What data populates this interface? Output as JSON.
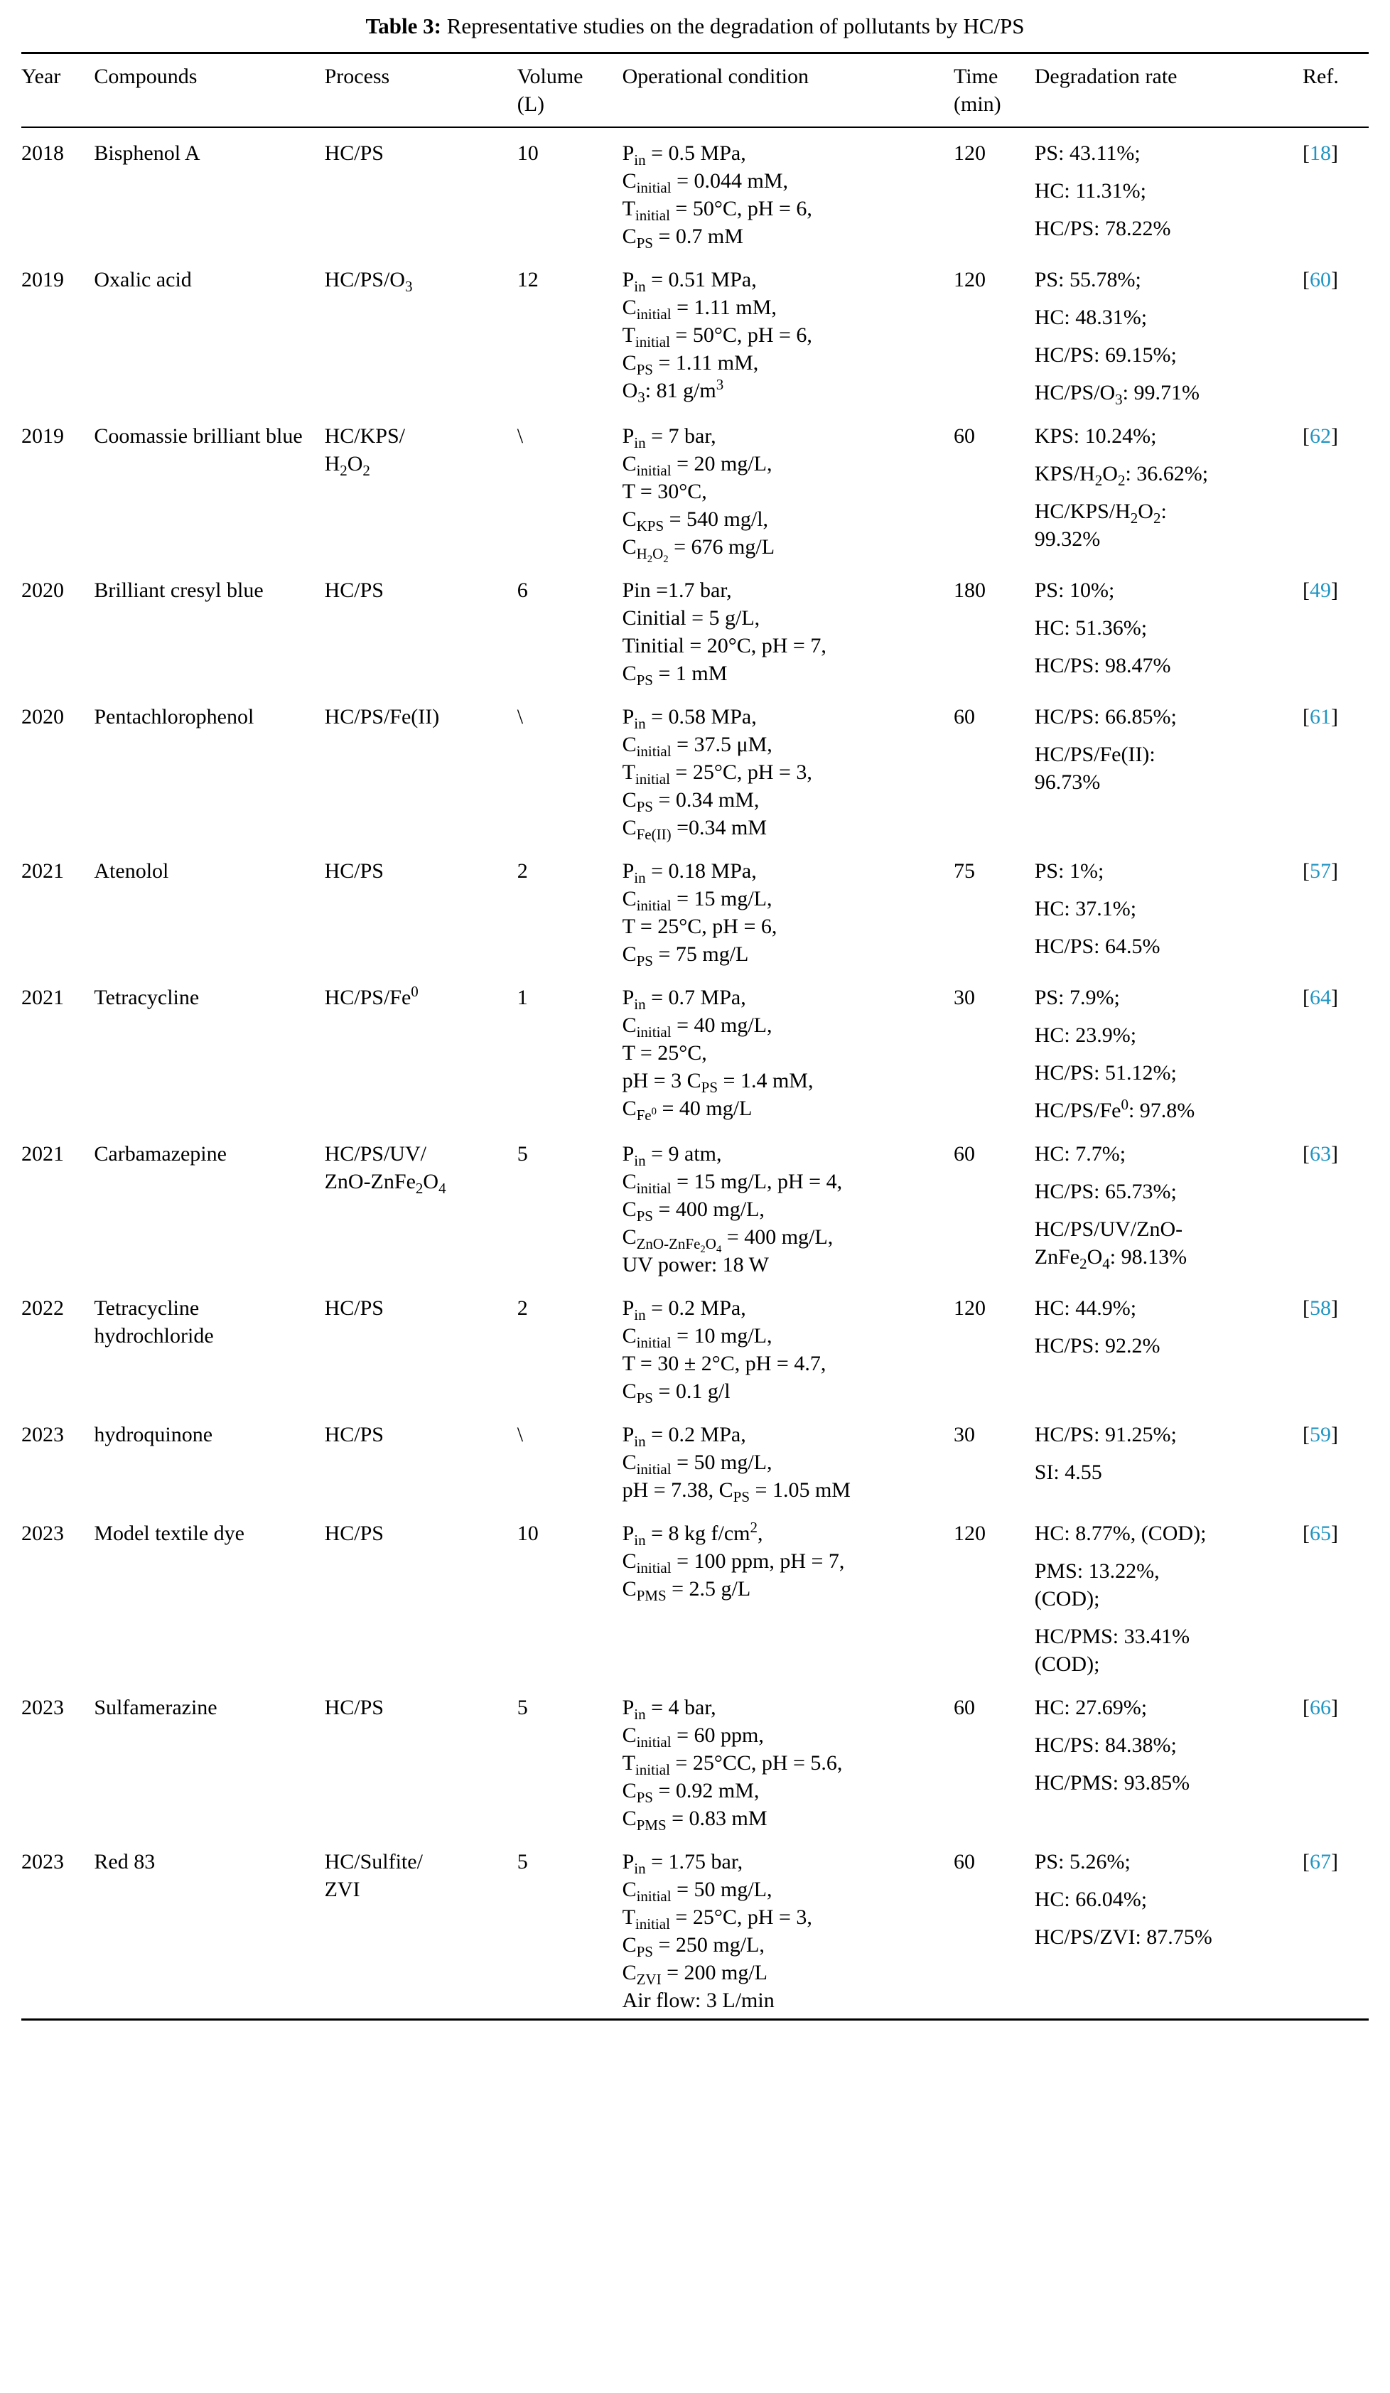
{
  "caption": {
    "label": "Table 3:",
    "text": "Representative studies on the degradation of pollutants by HC/PS"
  },
  "citation": {
    "open": "[",
    "close": "]"
  },
  "colors": {
    "text": "#000000",
    "rule": "#000000",
    "ref_link": "#2095c3"
  },
  "table": {
    "columns": [
      {
        "key": "year",
        "label": "Year"
      },
      {
        "key": "compounds",
        "label": "Compounds"
      },
      {
        "key": "process",
        "label": "Process"
      },
      {
        "key": "volume",
        "label": "Volume (L)"
      },
      {
        "key": "condition",
        "label": "Operational condition"
      },
      {
        "key": "time",
        "label": "Time (min)"
      },
      {
        "key": "rate",
        "label": "Degradation rate"
      },
      {
        "key": "ref",
        "label": "Ref."
      }
    ],
    "rows": [
      {
        "year": "2018",
        "compounds": "Bisphenol A",
        "process": "HC/PS",
        "volume": "10",
        "condition_lines": [
          "P<sub>in</sub> = 0.5 MPa,",
          "C<sub>initial</sub> = 0.044 mM,",
          "T<sub>initial</sub> = 50°C, pH = 6,",
          "C<sub>PS</sub> = 0.7 mM"
        ],
        "time": "120",
        "rate_items": [
          "PS: 43.11%;",
          "HC: 11.31%;",
          "HC/PS: 78.22%"
        ],
        "ref": "18"
      },
      {
        "year": "2019",
        "compounds": "Oxalic acid",
        "process": "HC/PS/O<sub>3</sub>",
        "volume": "12",
        "condition_lines": [
          "P<sub>in</sub> = 0.51 MPa,",
          "C<sub>initial</sub> = 1.11 mM,",
          "T<sub>initial</sub> = 50°C, pH = 6,",
          "C<sub>PS</sub> = 1.11 mM,",
          "O<sub>3</sub>: 81 g/m<sup>3</sup>"
        ],
        "time": "120",
        "rate_items": [
          "PS: 55.78%;",
          "HC: 48.31%;",
          "HC/PS: 69.15%;",
          "HC/PS/O<sub>3</sub>: 99.71%"
        ],
        "ref": "60"
      },
      {
        "year": "2019",
        "compounds": "Coomassie brilliant blue",
        "process": "HC/KPS/<br>H<sub>2</sub>O<sub>2</sub>",
        "volume": "\\",
        "condition_lines": [
          "P<sub>in</sub> = 7 bar,",
          "C<sub>initial</sub> = 20 mg/L,",
          "T = 30°C,",
          "C<sub>KPS</sub> = 540 mg/l,",
          "C<sub>H<sub>2</sub>O<sub>2</sub></sub> = 676 mg/L"
        ],
        "time": "60",
        "rate_items": [
          "KPS: 10.24%;",
          "KPS/H<sub>2</sub>O<sub>2</sub>: 36.62%;",
          "HC/KPS/H<sub>2</sub>O<sub>2</sub>:<br>99.32%"
        ],
        "ref": "62"
      },
      {
        "year": "2020",
        "compounds": "Brilliant cresyl blue",
        "process": "HC/PS",
        "volume": "6",
        "condition_lines": [
          "Pin =1.7 bar,",
          "Cinitial = 5 g/L,",
          "Tinitial = 20°C, pH = 7,",
          "C<sub>PS</sub> = 1 mM"
        ],
        "time": "180",
        "rate_items": [
          "PS: 10%;",
          "HC: 51.36%;",
          "HC/PS: 98.47%"
        ],
        "ref": "49"
      },
      {
        "year": "2020",
        "compounds": "Pentachlorophenol",
        "process": "HC/PS/Fe(II)",
        "volume": "\\",
        "condition_lines": [
          "P<sub>in</sub> = 0.58 MPa,",
          "C<sub>initial</sub> = 37.5 μM,",
          "T<sub>initial</sub> = 25°C, pH = 3,",
          "C<sub>PS</sub> = 0.34 mM,",
          "C<sub>Fe(II)</sub> =0.34 mM"
        ],
        "time": "60",
        "rate_items": [
          "HC/PS: 66.85%;",
          "HC/PS/Fe(II):<br>96.73%"
        ],
        "ref": "61"
      },
      {
        "year": "2021",
        "compounds": "Atenolol",
        "process": "HC/PS",
        "volume": "2",
        "condition_lines": [
          "P<sub>in</sub> = 0.18 MPa,",
          "C<sub>initial</sub> = 15 mg/L,",
          "T = 25°C, pH = 6,",
          "C<sub>PS</sub> = 75 mg/L"
        ],
        "time": "75",
        "rate_items": [
          "PS: 1%;",
          "HC: 37.1%;",
          "HC/PS: 64.5%"
        ],
        "ref": "57"
      },
      {
        "year": "2021",
        "compounds": "Tetracycline",
        "process": "HC/PS/Fe<sup>0</sup>",
        "volume": "1",
        "condition_lines": [
          "P<sub>in</sub> = 0.7 MPa,",
          "C<sub>initial</sub> = 40 mg/L,",
          "T = 25°C,",
          "pH = 3 C<sub>PS</sub> = 1.4 mM,",
          "C<sub>Fe<sup>0</sup></sub> = 40 mg/L"
        ],
        "time": "30",
        "rate_items": [
          "PS: 7.9%;",
          "HC: 23.9%;",
          "HC/PS: 51.12%;",
          "HC/PS/Fe<sup>0</sup>: 97.8%"
        ],
        "ref": "64"
      },
      {
        "year": "2021",
        "compounds": "Carbamazepine",
        "process": "HC/PS/UV/<br>ZnO-ZnFe<sub>2</sub>O<sub>4</sub>",
        "volume": "5",
        "condition_lines": [
          "P<sub>in</sub> = 9 atm,",
          "C<sub>initial</sub> = 15 mg/L, pH = 4,",
          "C<sub>PS</sub> = 400 mg/L,",
          "C<sub>ZnO-ZnFe<sub>2</sub>O<sub>4</sub></sub> = 400 mg/L,",
          "UV power: 18 W"
        ],
        "time": "60",
        "rate_items": [
          "HC: 7.7%;",
          "HC/PS: 65.73%;",
          "HC/PS/UV/ZnO-<br>ZnFe<sub>2</sub>O<sub>4</sub>: 98.13%"
        ],
        "ref": "63"
      },
      {
        "year": "2022",
        "compounds": "Tetracycline hydrochloride",
        "process": "HC/PS",
        "volume": "2",
        "condition_lines": [
          "P<sub>in</sub> = 0.2 MPa,",
          "C<sub>initial</sub> = 10 mg/L,",
          "T = 30 ± 2°C, pH = 4.7,",
          "C<sub>PS</sub> = 0.1 g/l"
        ],
        "time": "120",
        "rate_items": [
          "HC: 44.9%;",
          "HC/PS: 92.2%"
        ],
        "ref": "58"
      },
      {
        "year": "2023",
        "compounds": "hydroquinone",
        "process": "HC/PS",
        "volume": "\\",
        "condition_lines": [
          "P<sub>in</sub> = 0.2 MPa,",
          "C<sub>initial</sub> = 50 mg/L,",
          "pH = 7.38, C<sub>PS</sub> = 1.05 mM"
        ],
        "time": "30",
        "rate_items": [
          "HC/PS: 91.25%;",
          "SI: 4.55"
        ],
        "ref": "59"
      },
      {
        "year": "2023",
        "compounds": "Model textile dye",
        "process": "HC/PS",
        "volume": "10",
        "condition_lines": [
          "P<sub>in</sub> = 8 kg f/cm<sup>2</sup>,",
          "C<sub>initial</sub> = 100 ppm, pH = 7,",
          "C<sub>PMS</sub> = 2.5 g/L"
        ],
        "time": "120",
        "rate_items": [
          "HC: 8.77%, (COD);",
          "PMS: 13.22%,<br>(COD);",
          "HC/PMS: 33.41%<br>(COD);"
        ],
        "ref": "65"
      },
      {
        "year": "2023",
        "compounds": "Sulfamerazine",
        "process": "HC/PS",
        "volume": "5",
        "condition_lines": [
          "P<sub>in</sub> = 4 bar,",
          "C<sub>initial</sub> = 60 ppm,",
          "T<sub>initial</sub> = 25°CC, pH = 5.6,",
          "C<sub>PS</sub> = 0.92 mM,",
          "C<sub>PMS</sub> = 0.83 mM"
        ],
        "time": "60",
        "rate_items": [
          "HC: 27.69%;",
          "HC/PS: 84.38%;",
          "HC/PMS: 93.85%"
        ],
        "ref": "66"
      },
      {
        "year": "2023",
        "compounds": "Red 83",
        "process": "HC/Sulfite/<br>ZVI",
        "volume": "5",
        "condition_lines": [
          "P<sub>in</sub> = 1.75 bar,",
          "C<sub>initial</sub> = 50 mg/L,",
          "T<sub>initial</sub> = 25°C, pH = 3,",
          "C<sub>PS</sub> = 250 mg/L,",
          "C<sub>ZVI</sub> = 200 mg/L",
          "Air flow: 3 L/min"
        ],
        "time": "60",
        "rate_items": [
          "PS: 5.26%;",
          "HC: 66.04%;",
          "HC/PS/ZVI: 87.75%"
        ],
        "ref": "67"
      }
    ]
  }
}
